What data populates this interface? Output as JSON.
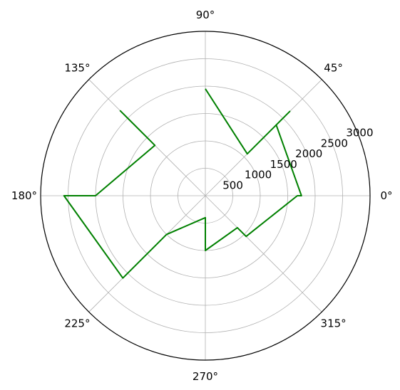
{
  "chart_data": {
    "type": "line",
    "subtype": "polar",
    "title": "",
    "angular_ticks_deg": [
      0,
      45,
      90,
      135,
      180,
      225,
      270,
      315
    ],
    "angular_tick_labels": [
      "0°",
      "45°",
      "90°",
      "135°",
      "180°",
      "225°",
      "270°",
      "315°"
    ],
    "radial_ticks": [
      500,
      1000,
      1500,
      2000,
      2500,
      3000
    ],
    "radial_tick_labels": [
      "500",
      "1000",
      "1500",
      "2000",
      "2500",
      "3000"
    ],
    "rlim": [
      0,
      3000
    ],
    "grid": true,
    "series": [
      {
        "color": "#008000",
        "theta_deg": [
          90,
          45,
          45,
          45,
          0,
          0,
          315,
          315,
          270,
          270,
          225,
          225,
          180,
          180,
          135,
          135,
          135
        ],
        "r": [
          1950,
          1080,
          2175,
          1825,
          1750,
          1675,
          1050,
          825,
          1000,
          400,
          1000,
          2125,
          2575,
          2000,
          1300,
          1975,
          2200
        ]
      }
    ]
  }
}
